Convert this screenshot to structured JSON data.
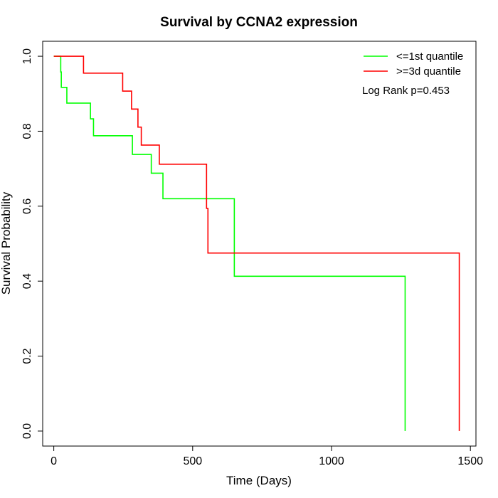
{
  "chart_data": {
    "type": "line",
    "title": "Survival by CCNA2 expression",
    "xlabel": "Time (Days)",
    "ylabel": "Survival Probability",
    "xlim": [
      -40,
      1520
    ],
    "ylim": [
      -0.04,
      1.04
    ],
    "x_ticks": [
      0,
      500,
      1000,
      1500
    ],
    "y_ticks": [
      0.0,
      0.2,
      0.4,
      0.6,
      0.8,
      1.0
    ],
    "x_tick_labels": [
      "0",
      "500",
      "1000",
      "1500"
    ],
    "y_tick_labels": [
      "0.0",
      "0.2",
      "0.4",
      "0.6",
      "0.8",
      "1.0"
    ],
    "grid": false,
    "legend_position": "top-right",
    "annotation": "Log Rank p=0.453",
    "series": [
      {
        "name": "<=1st quantile",
        "color": "#00ff00",
        "steps": [
          [
            0,
            1.0
          ],
          [
            25,
            0.958
          ],
          [
            27,
            0.917
          ],
          [
            47,
            0.875
          ],
          [
            132,
            0.833
          ],
          [
            143,
            0.788
          ],
          [
            283,
            0.738
          ],
          [
            351,
            0.688
          ],
          [
            393,
            0.62
          ],
          [
            650,
            0.413
          ],
          [
            1265,
            0.0
          ]
        ]
      },
      {
        "name": ">=3d quantile",
        "color": "#ff0000",
        "steps": [
          [
            0,
            1.0
          ],
          [
            107,
            0.955
          ],
          [
            248,
            0.907
          ],
          [
            280,
            0.859
          ],
          [
            303,
            0.811
          ],
          [
            315,
            0.763
          ],
          [
            380,
            0.712
          ],
          [
            550,
            0.594
          ],
          [
            555,
            0.475
          ],
          [
            1460,
            0.0
          ]
        ]
      }
    ]
  }
}
